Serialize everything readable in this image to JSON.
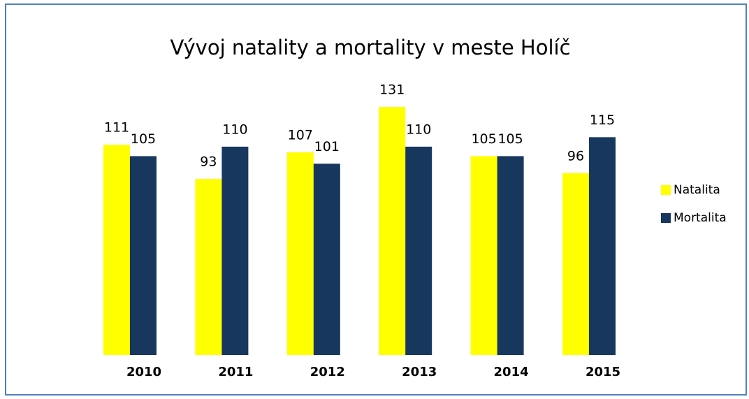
{
  "chart_data": {
    "type": "bar",
    "title": "Vývoj natality a mortality v meste Holíč",
    "categories": [
      "2010",
      "2011",
      "2012",
      "2013",
      "2014",
      "2015"
    ],
    "series": [
      {
        "name": "Natalita",
        "color": "#ffff00",
        "values": [
          111,
          93,
          107,
          131,
          105,
          96
        ]
      },
      {
        "name": "Mortalita",
        "color": "#17375e",
        "values": [
          105,
          110,
          101,
          110,
          105,
          115
        ]
      }
    ],
    "ylim": [
      0,
      140
    ],
    "legend": "right"
  }
}
